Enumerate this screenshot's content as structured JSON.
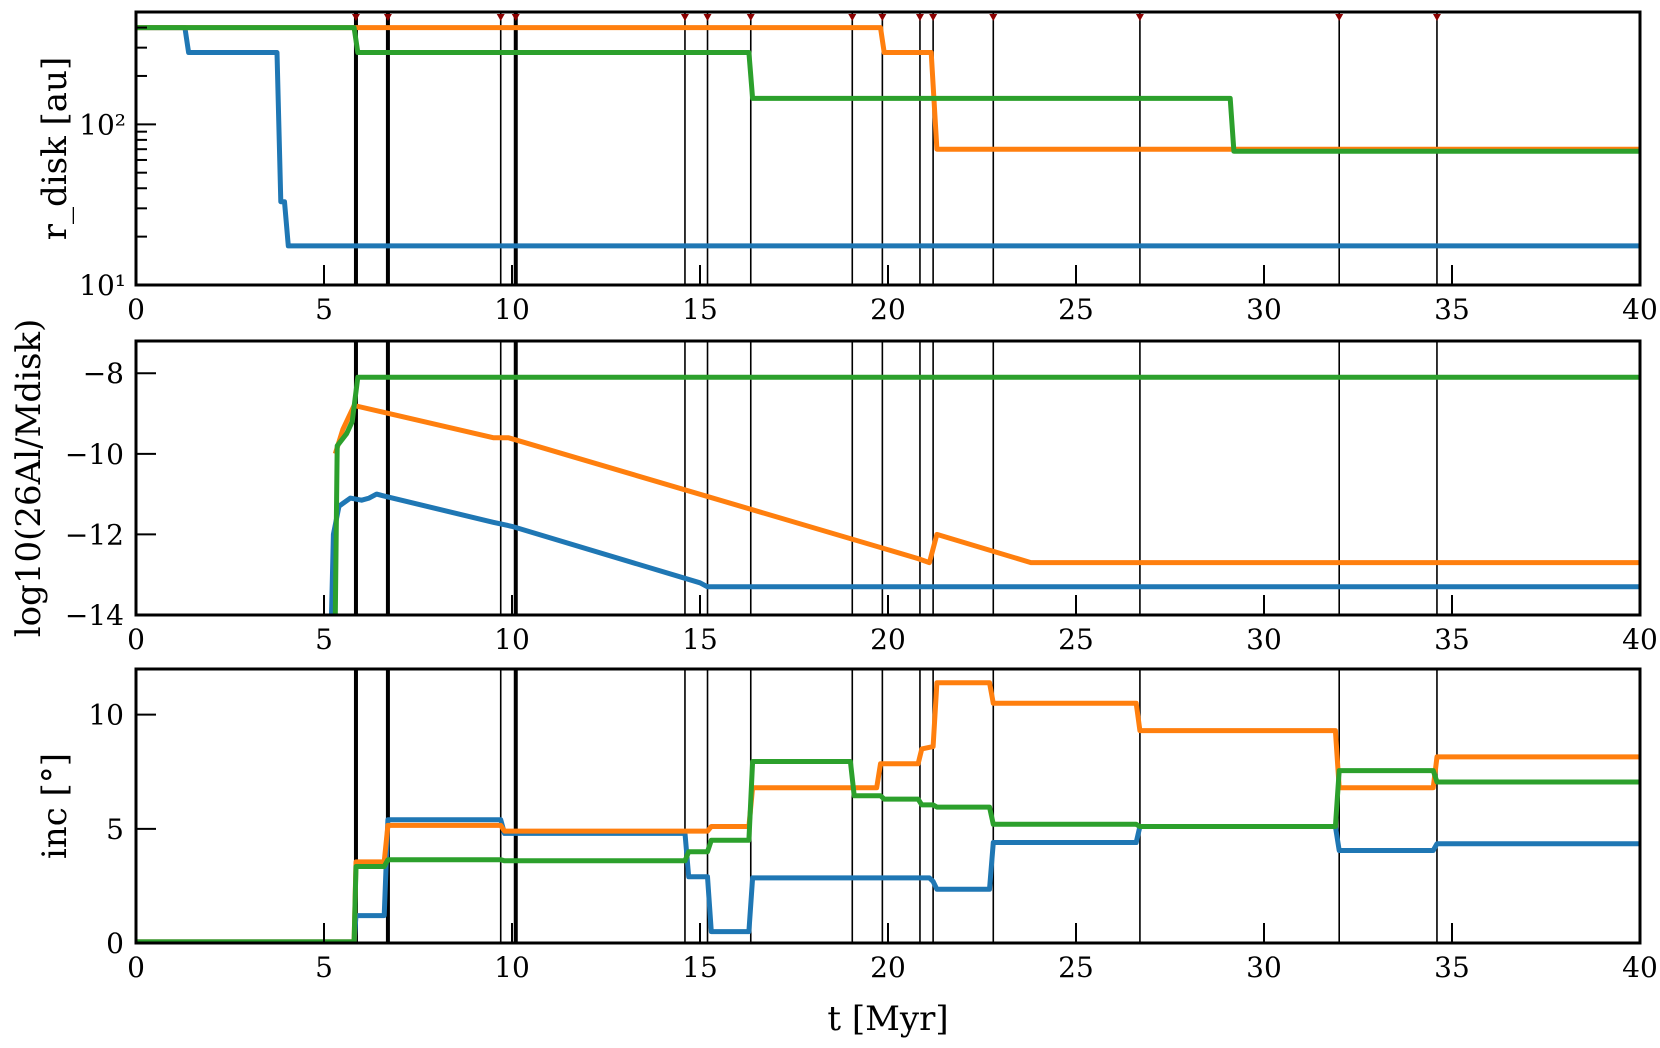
{
  "chart_data": [
    {
      "type": "line",
      "panel": "top",
      "ylabel": "r_disk [au]",
      "yscale": "log",
      "xlim": [
        0,
        40
      ],
      "ylim": [
        10,
        500
      ],
      "yticks": [
        {
          "value": 10,
          "label": "10¹"
        },
        {
          "value": 100,
          "label": "10²"
        }
      ],
      "xticks": [
        0,
        5,
        10,
        15,
        20,
        25,
        30,
        35,
        40
      ],
      "xtick_labels": [
        "0",
        "5",
        "10",
        "15",
        "20",
        "25",
        "30",
        "35",
        "40"
      ],
      "series": [
        {
          "color": "#1f77b4",
          "points": [
            [
              0,
              400
            ],
            [
              1.3,
              400
            ],
            [
              1.4,
              280
            ],
            [
              3.75,
              280
            ],
            [
              3.85,
              33
            ],
            [
              3.95,
              33
            ],
            [
              4.05,
              17.5
            ],
            [
              40,
              17.5
            ]
          ]
        },
        {
          "color": "#ff7f0e",
          "points": [
            [
              0,
              400
            ],
            [
              19.8,
              400
            ],
            [
              19.9,
              280
            ],
            [
              21.15,
              280
            ],
            [
              21.3,
              70
            ],
            [
              40,
              70
            ]
          ]
        },
        {
          "color": "#2ca02c",
          "points": [
            [
              0,
              400
            ],
            [
              5.8,
              400
            ],
            [
              5.9,
              280
            ],
            [
              16.3,
              280
            ],
            [
              16.4,
              145
            ],
            [
              29.1,
              145
            ],
            [
              29.2,
              68
            ],
            [
              40,
              68
            ]
          ]
        }
      ]
    },
    {
      "type": "line",
      "panel": "middle",
      "ylabel": "log10(26Al/Mdisk)",
      "xlim": [
        0,
        40
      ],
      "ylim": [
        -14,
        -7.2
      ],
      "yticks": [
        -14,
        -12,
        -10,
        -8
      ],
      "ytick_labels": [
        "−14",
        "−12",
        "−10",
        "−8"
      ],
      "xticks": [
        0,
        5,
        10,
        15,
        20,
        25,
        30,
        35,
        40
      ],
      "xtick_labels": [
        "0",
        "5",
        "10",
        "15",
        "20",
        "25",
        "30",
        "35",
        "40"
      ],
      "series": [
        {
          "color": "#1f77b4",
          "points": [
            [
              5.2,
              -14
            ],
            [
              5.25,
              -12
            ],
            [
              5.4,
              -11.3
            ],
            [
              5.7,
              -11.1
            ],
            [
              6.0,
              -11.15
            ],
            [
              6.2,
              -11.1
            ],
            [
              6.4,
              -11.0
            ],
            [
              6.6,
              -11.05
            ],
            [
              9.5,
              -11.7
            ],
            [
              10.0,
              -11.8
            ],
            [
              15.0,
              -13.2
            ],
            [
              15.2,
              -13.3
            ],
            [
              40,
              -13.3
            ]
          ]
        },
        {
          "color": "#ff7f0e",
          "points": [
            [
              5.3,
              -10
            ],
            [
              5.5,
              -9.4
            ],
            [
              5.8,
              -8.8
            ],
            [
              9.5,
              -9.6
            ],
            [
              9.9,
              -9.6
            ],
            [
              20.8,
              -12.6
            ],
            [
              21.1,
              -12.7
            ],
            [
              21.3,
              -12.0
            ],
            [
              23.8,
              -12.7
            ],
            [
              40,
              -12.7
            ]
          ]
        },
        {
          "color": "#2ca02c",
          "points": [
            [
              5.3,
              -14
            ],
            [
              5.35,
              -9.8
            ],
            [
              5.6,
              -9.5
            ],
            [
              5.75,
              -9.2
            ],
            [
              5.9,
              -8.1
            ],
            [
              40,
              -8.1
            ]
          ]
        }
      ]
    },
    {
      "type": "line",
      "panel": "bottom",
      "xlabel": "t [Myr]",
      "ylabel": "inc [°]",
      "xlim": [
        0,
        40
      ],
      "ylim": [
        0,
        12
      ],
      "yticks": [
        0,
        5,
        10
      ],
      "ytick_labels": [
        "0",
        "5",
        "10"
      ],
      "xticks": [
        0,
        5,
        10,
        15,
        20,
        25,
        30,
        35,
        40
      ],
      "xtick_labels": [
        "0",
        "5",
        "10",
        "15",
        "20",
        "25",
        "30",
        "35",
        "40"
      ],
      "series": [
        {
          "color": "#1f77b4",
          "points": [
            [
              0,
              0.05
            ],
            [
              5.8,
              0.05
            ],
            [
              5.85,
              1.2
            ],
            [
              6.6,
              1.2
            ],
            [
              6.7,
              5.4
            ],
            [
              9.7,
              5.4
            ],
            [
              9.8,
              4.8
            ],
            [
              14.6,
              4.8
            ],
            [
              14.7,
              2.9
            ],
            [
              15.2,
              2.9
            ],
            [
              15.3,
              0.5
            ],
            [
              16.3,
              0.5
            ],
            [
              16.4,
              2.85
            ],
            [
              21.1,
              2.85
            ],
            [
              21.2,
              2.7
            ],
            [
              21.3,
              2.35
            ],
            [
              22.7,
              2.35
            ],
            [
              22.8,
              4.4
            ],
            [
              26.6,
              4.4
            ],
            [
              26.7,
              5.1
            ],
            [
              31.9,
              5.1
            ],
            [
              32.0,
              4.05
            ],
            [
              34.5,
              4.05
            ],
            [
              34.6,
              4.35
            ],
            [
              40,
              4.35
            ]
          ]
        },
        {
          "color": "#ff7f0e",
          "points": [
            [
              0,
              0.05
            ],
            [
              5.8,
              0.05
            ],
            [
              5.85,
              3.55
            ],
            [
              6.6,
              3.55
            ],
            [
              6.7,
              5.15
            ],
            [
              9.7,
              5.15
            ],
            [
              9.8,
              4.9
            ],
            [
              15.2,
              4.9
            ],
            [
              15.3,
              5.1
            ],
            [
              16.3,
              5.1
            ],
            [
              16.4,
              6.8
            ],
            [
              19.0,
              6.8
            ],
            [
              19.1,
              6.8
            ],
            [
              19.7,
              6.8
            ],
            [
              19.8,
              7.85
            ],
            [
              20.8,
              7.85
            ],
            [
              20.9,
              8.5
            ],
            [
              21.2,
              8.6
            ],
            [
              21.3,
              11.4
            ],
            [
              22.7,
              11.4
            ],
            [
              22.8,
              10.5
            ],
            [
              26.6,
              10.5
            ],
            [
              26.7,
              9.3
            ],
            [
              31.9,
              9.3
            ],
            [
              32.0,
              6.8
            ],
            [
              34.5,
              6.8
            ],
            [
              34.6,
              8.15
            ],
            [
              40,
              8.15
            ]
          ]
        },
        {
          "color": "#2ca02c",
          "points": [
            [
              0,
              0.05
            ],
            [
              5.8,
              0.05
            ],
            [
              5.85,
              3.35
            ],
            [
              6.6,
              3.35
            ],
            [
              6.7,
              3.65
            ],
            [
              9.7,
              3.65
            ],
            [
              9.8,
              3.6
            ],
            [
              14.6,
              3.6
            ],
            [
              14.7,
              4.0
            ],
            [
              15.2,
              4.0
            ],
            [
              15.3,
              4.5
            ],
            [
              16.3,
              4.5
            ],
            [
              16.4,
              7.95
            ],
            [
              19.0,
              7.95
            ],
            [
              19.1,
              6.45
            ],
            [
              19.8,
              6.45
            ],
            [
              19.9,
              6.3
            ],
            [
              20.8,
              6.3
            ],
            [
              20.9,
              6.05
            ],
            [
              21.2,
              6.05
            ],
            [
              21.3,
              5.95
            ],
            [
              22.7,
              5.95
            ],
            [
              22.8,
              5.2
            ],
            [
              26.6,
              5.2
            ],
            [
              26.7,
              5.1
            ],
            [
              31.9,
              5.1
            ],
            [
              32.0,
              7.55
            ],
            [
              34.5,
              7.55
            ],
            [
              34.6,
              7.05
            ],
            [
              40,
              7.05
            ]
          ]
        }
      ]
    }
  ],
  "events": [
    {
      "t": 5.85,
      "thick": true
    },
    {
      "t": 6.7,
      "thick": true
    },
    {
      "t": 9.7,
      "thick": false
    },
    {
      "t": 10.1,
      "thick": true
    },
    {
      "t": 14.6,
      "thick": false
    },
    {
      "t": 15.2,
      "thick": false
    },
    {
      "t": 16.35,
      "thick": false
    },
    {
      "t": 19.05,
      "thick": false
    },
    {
      "t": 19.85,
      "thick": false
    },
    {
      "t": 20.85,
      "thick": false
    },
    {
      "t": 21.2,
      "thick": false
    },
    {
      "t": 22.8,
      "thick": false
    },
    {
      "t": 26.7,
      "thick": false
    },
    {
      "t": 32.0,
      "thick": false
    },
    {
      "t": 34.6,
      "thick": false
    }
  ]
}
